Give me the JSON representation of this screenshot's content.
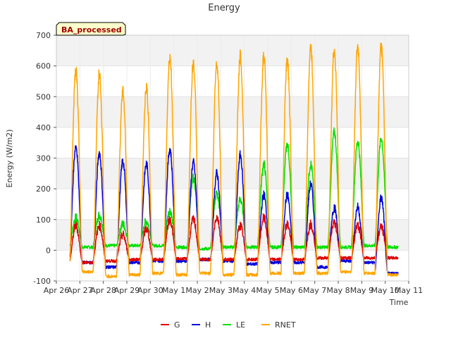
{
  "chart_data": {
    "type": "line",
    "title": "Energy",
    "xlabel": "Time",
    "ylabel": "Energy (W/m2)",
    "badge": "BA_processed",
    "ylim": [
      -100,
      700
    ],
    "yticks": [
      -100,
      0,
      100,
      200,
      300,
      400,
      500,
      600,
      700
    ],
    "xlim": [
      0,
      15
    ],
    "xticks": [
      {
        "x": 0,
        "label": "Apr 26"
      },
      {
        "x": 1,
        "label": "Apr 27"
      },
      {
        "x": 2,
        "label": "Apr 28"
      },
      {
        "x": 3,
        "label": "Apr 29"
      },
      {
        "x": 4,
        "label": "Apr 30"
      },
      {
        "x": 5,
        "label": "May 1"
      },
      {
        "x": 6,
        "label": "May 2"
      },
      {
        "x": 7,
        "label": "May 3"
      },
      {
        "x": 8,
        "label": "May 4"
      },
      {
        "x": 9,
        "label": "May 5"
      },
      {
        "x": 10,
        "label": "May 6"
      },
      {
        "x": 11,
        "label": "May 7"
      },
      {
        "x": 12,
        "label": "May 8"
      },
      {
        "x": 13,
        "label": "May 9"
      },
      {
        "x": 14,
        "label": "May 10"
      },
      {
        "x": 15,
        "label": "May 11"
      }
    ],
    "grid": true,
    "legend_position": "bottom",
    "series": [
      {
        "name": "G",
        "color": "#e00000",
        "night": [
          -40,
          -35,
          -30,
          -30,
          -28,
          -30,
          -30,
          -30,
          -30,
          -30,
          -25,
          -25,
          -25,
          -25,
          -20
        ],
        "peak": [
          80,
          80,
          50,
          70,
          100,
          100,
          108,
          80,
          105,
          85,
          85,
          90,
          80,
          75,
          75
        ]
      },
      {
        "name": "H",
        "color": "#0000dd",
        "night": [
          -40,
          -55,
          -40,
          -35,
          -35,
          -30,
          -35,
          -45,
          -40,
          -40,
          -55,
          -35,
          -40,
          -75,
          -40
        ],
        "peak": [
          340,
          318,
          290,
          280,
          330,
          285,
          250,
          310,
          180,
          180,
          215,
          140,
          140,
          170,
          170
        ]
      },
      {
        "name": "LE",
        "color": "#00e000",
        "night": [
          10,
          15,
          15,
          15,
          10,
          5,
          10,
          10,
          10,
          10,
          10,
          10,
          15,
          10,
          10
        ],
        "peak": [
          105,
          115,
          85,
          95,
          130,
          235,
          185,
          165,
          280,
          345,
          280,
          385,
          355,
          365,
          365
        ]
      },
      {
        "name": "RNET",
        "color": "#ffa500",
        "night": [
          -70,
          -85,
          -80,
          -75,
          -80,
          -75,
          -80,
          -80,
          -75,
          -75,
          -75,
          -70,
          -75,
          -80,
          -65
        ],
        "peak": [
          590,
          575,
          520,
          530,
          630,
          610,
          610,
          635,
          630,
          620,
          660,
          650,
          660,
          660,
          660
        ]
      }
    ]
  }
}
